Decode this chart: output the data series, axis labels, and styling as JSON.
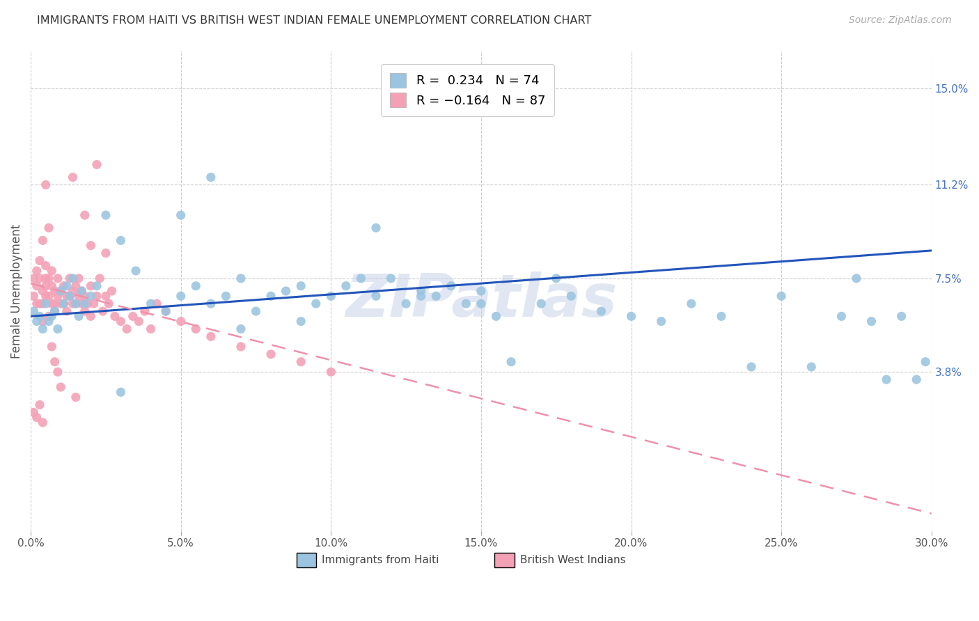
{
  "title": "IMMIGRANTS FROM HAITI VS BRITISH WEST INDIAN FEMALE UNEMPLOYMENT CORRELATION CHART",
  "source": "Source: ZipAtlas.com",
  "ylabel": "Female Unemployment",
  "xlim": [
    0.0,
    0.3
  ],
  "ylim": [
    -0.025,
    0.165
  ],
  "xtick_labels": [
    "0.0%",
    "5.0%",
    "10.0%",
    "15.0%",
    "20.0%",
    "25.0%",
    "30.0%"
  ],
  "xtick_vals": [
    0.0,
    0.05,
    0.1,
    0.15,
    0.2,
    0.25,
    0.3
  ],
  "right_ytick_vals": [
    0.038,
    0.075,
    0.112,
    0.15
  ],
  "right_ytick_labels": [
    "3.8%",
    "7.5%",
    "11.2%",
    "15.0%"
  ],
  "haiti_color": "#9ac4e0",
  "bwi_color": "#f4a0b5",
  "haiti_trend_color": "#2255bb",
  "bwi_trend_color": "#f090aa",
  "background_color": "#ffffff",
  "watermark": "ZIPatlas",
  "watermark_color": "#c8d4e8",
  "haiti_x": [
    0.001,
    0.002,
    0.003,
    0.004,
    0.005,
    0.006,
    0.007,
    0.008,
    0.009,
    0.01,
    0.011,
    0.012,
    0.013,
    0.014,
    0.015,
    0.016,
    0.017,
    0.018,
    0.02,
    0.022,
    0.025,
    0.03,
    0.035,
    0.04,
    0.045,
    0.05,
    0.055,
    0.06,
    0.065,
    0.07,
    0.075,
    0.08,
    0.085,
    0.09,
    0.095,
    0.1,
    0.105,
    0.11,
    0.115,
    0.12,
    0.125,
    0.13,
    0.135,
    0.14,
    0.145,
    0.15,
    0.155,
    0.16,
    0.17,
    0.175,
    0.18,
    0.19,
    0.2,
    0.21,
    0.22,
    0.23,
    0.24,
    0.25,
    0.26,
    0.27,
    0.275,
    0.28,
    0.285,
    0.29,
    0.295,
    0.298,
    0.05,
    0.07,
    0.09,
    0.115,
    0.13,
    0.15,
    0.03,
    0.06
  ],
  "haiti_y": [
    0.062,
    0.058,
    0.06,
    0.055,
    0.065,
    0.058,
    0.06,
    0.062,
    0.055,
    0.07,
    0.065,
    0.072,
    0.068,
    0.075,
    0.065,
    0.06,
    0.07,
    0.065,
    0.068,
    0.072,
    0.1,
    0.09,
    0.078,
    0.065,
    0.062,
    0.068,
    0.072,
    0.065,
    0.068,
    0.075,
    0.062,
    0.068,
    0.07,
    0.072,
    0.065,
    0.068,
    0.072,
    0.075,
    0.068,
    0.075,
    0.065,
    0.07,
    0.068,
    0.072,
    0.065,
    0.07,
    0.06,
    0.042,
    0.065,
    0.075,
    0.068,
    0.062,
    0.06,
    0.058,
    0.065,
    0.06,
    0.04,
    0.068,
    0.04,
    0.06,
    0.075,
    0.058,
    0.035,
    0.06,
    0.035,
    0.042,
    0.1,
    0.055,
    0.058,
    0.095,
    0.068,
    0.065,
    0.03,
    0.115
  ],
  "bwi_x": [
    0.001,
    0.001,
    0.002,
    0.002,
    0.002,
    0.003,
    0.003,
    0.003,
    0.004,
    0.004,
    0.004,
    0.005,
    0.005,
    0.005,
    0.005,
    0.006,
    0.006,
    0.006,
    0.007,
    0.007,
    0.007,
    0.008,
    0.008,
    0.008,
    0.009,
    0.009,
    0.01,
    0.01,
    0.011,
    0.011,
    0.012,
    0.012,
    0.013,
    0.013,
    0.014,
    0.014,
    0.015,
    0.015,
    0.016,
    0.016,
    0.017,
    0.017,
    0.018,
    0.018,
    0.019,
    0.02,
    0.02,
    0.021,
    0.022,
    0.023,
    0.024,
    0.025,
    0.026,
    0.027,
    0.028,
    0.03,
    0.032,
    0.034,
    0.036,
    0.038,
    0.04,
    0.042,
    0.045,
    0.05,
    0.055,
    0.06,
    0.07,
    0.08,
    0.09,
    0.1,
    0.004,
    0.005,
    0.006,
    0.007,
    0.008,
    0.009,
    0.003,
    0.002,
    0.001,
    0.004,
    0.01,
    0.015,
    0.02,
    0.025,
    0.022,
    0.018,
    0.014
  ],
  "bwi_y": [
    0.075,
    0.068,
    0.072,
    0.078,
    0.065,
    0.082,
    0.065,
    0.075,
    0.07,
    0.065,
    0.058,
    0.075,
    0.068,
    0.08,
    0.072,
    0.068,
    0.075,
    0.06,
    0.065,
    0.072,
    0.078,
    0.065,
    0.07,
    0.062,
    0.075,
    0.068,
    0.065,
    0.07,
    0.072,
    0.065,
    0.068,
    0.062,
    0.075,
    0.068,
    0.065,
    0.07,
    0.072,
    0.065,
    0.068,
    0.075,
    0.065,
    0.07,
    0.062,
    0.068,
    0.065,
    0.072,
    0.06,
    0.065,
    0.068,
    0.075,
    0.062,
    0.068,
    0.065,
    0.07,
    0.06,
    0.058,
    0.055,
    0.06,
    0.058,
    0.062,
    0.055,
    0.065,
    0.062,
    0.058,
    0.055,
    0.052,
    0.048,
    0.045,
    0.042,
    0.038,
    0.09,
    0.112,
    0.095,
    0.048,
    0.042,
    0.038,
    0.025,
    0.02,
    0.022,
    0.018,
    0.032,
    0.028,
    0.088,
    0.085,
    0.12,
    0.1,
    0.115
  ]
}
